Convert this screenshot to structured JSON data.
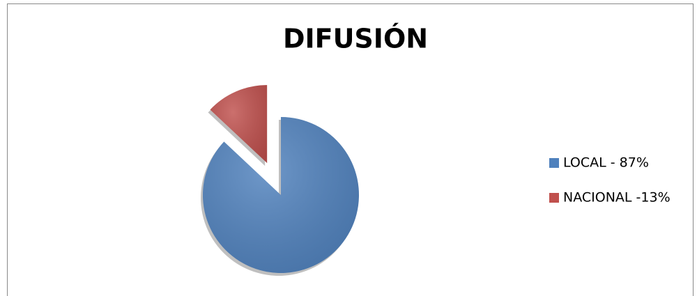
{
  "chart_data": {
    "type": "pie",
    "title": "DIFUSIÓN",
    "categories": [
      "LOCAL - 87%",
      "NACIONAL -13%"
    ],
    "values": [
      87,
      13
    ],
    "colors": [
      "#4f81bd",
      "#c0504d"
    ],
    "legend": "right"
  }
}
